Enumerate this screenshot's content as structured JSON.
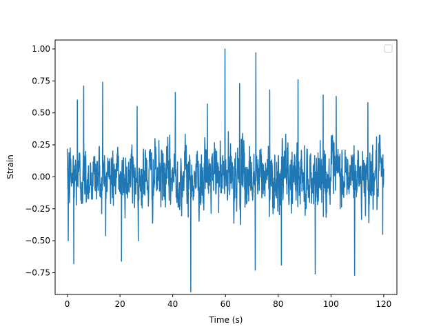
{
  "chart_data": {
    "type": "line",
    "title": "",
    "xlabel": "Time (s)",
    "ylabel": "Strain",
    "xlim": [
      -4.6,
      125.0
    ],
    "ylim": [
      -0.92,
      1.07
    ],
    "xticks": [
      0,
      20,
      40,
      60,
      80,
      100,
      120
    ],
    "yticks": [
      -0.75,
      -0.5,
      -0.25,
      0.0,
      0.25,
      0.5,
      0.75,
      1.0
    ],
    "xtick_labels": [
      "0",
      "20",
      "40",
      "60",
      "80",
      "100",
      "120"
    ],
    "ytick_labels": [
      "−0.75",
      "−0.50",
      "−0.25",
      "0.00",
      "0.25",
      "0.50",
      "0.75",
      "1.00"
    ],
    "grid": false,
    "legend": {
      "placement": "upper-right",
      "entries": []
    },
    "series": [
      {
        "color": "#1f77b4",
        "x_range": [
          0,
          120
        ],
        "sample_count": 1600,
        "extremes": [
          {
            "x": 0.0,
            "y": 0.22
          },
          {
            "x": 0.4,
            "y": -0.5
          },
          {
            "x": 2.5,
            "y": -0.68
          },
          {
            "x": 3.8,
            "y": 0.6
          },
          {
            "x": 6.2,
            "y": 0.71
          },
          {
            "x": 13.4,
            "y": 0.74
          },
          {
            "x": 20.6,
            "y": -0.66
          },
          {
            "x": 26.5,
            "y": 0.55
          },
          {
            "x": 41.0,
            "y": 0.66
          },
          {
            "x": 46.8,
            "y": -0.9
          },
          {
            "x": 53.1,
            "y": 0.57
          },
          {
            "x": 59.8,
            "y": 1.0
          },
          {
            "x": 65.4,
            "y": 0.73
          },
          {
            "x": 71.5,
            "y": 0.97
          },
          {
            "x": 71.3,
            "y": -0.73
          },
          {
            "x": 76.8,
            "y": 0.68
          },
          {
            "x": 81.2,
            "y": -0.69
          },
          {
            "x": 87.5,
            "y": 0.76
          },
          {
            "x": 94.0,
            "y": -0.76
          },
          {
            "x": 97.0,
            "y": 0.64
          },
          {
            "x": 102.0,
            "y": 0.63
          },
          {
            "x": 109.0,
            "y": -0.77
          },
          {
            "x": 114.0,
            "y": 0.58
          },
          {
            "x": 119.6,
            "y": -0.45
          }
        ]
      }
    ]
  }
}
